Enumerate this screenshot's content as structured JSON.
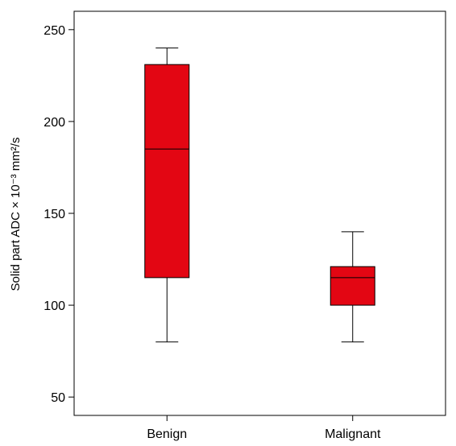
{
  "chart_data": {
    "type": "boxplot",
    "title": "",
    "xlabel": "",
    "ylabel": "Solid part ADC × 10⁻³ mm²/s",
    "ylim": [
      40,
      260
    ],
    "yticks": [
      50,
      100,
      150,
      200,
      250
    ],
    "ytick_labels": [
      "50",
      "100",
      "150",
      "200",
      "250"
    ],
    "grid": false,
    "legend": "none",
    "box_color": "#e30613",
    "line_color": "#000000",
    "categories": [
      "Benign",
      "Malignant"
    ],
    "boxes": [
      {
        "category": "Benign",
        "whisker_low": 80,
        "q1": 115,
        "median": 185,
        "q3": 231,
        "whisker_high": 240
      },
      {
        "category": "Malignant",
        "whisker_low": 80,
        "q1": 100,
        "median": 115,
        "q3": 121,
        "whisker_high": 140
      }
    ]
  }
}
